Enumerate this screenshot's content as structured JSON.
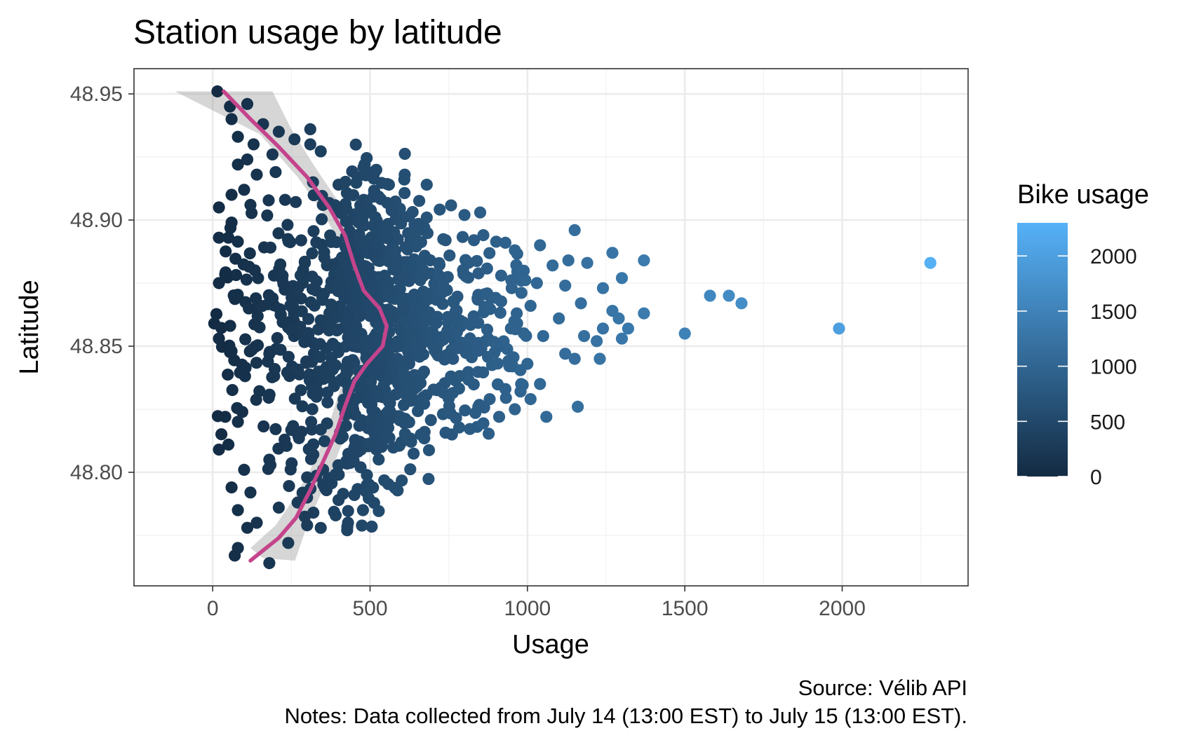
{
  "chart_data": {
    "type": "scatter",
    "title": "Station usage by latitude",
    "xlabel": "Usage",
    "ylabel": "Latitude",
    "xlim": [
      -250,
      2400
    ],
    "ylim": [
      48.755,
      48.96
    ],
    "x_ticks": [
      0,
      500,
      1000,
      1500,
      2000
    ],
    "x_tick_labels": [
      "0",
      "500",
      "1000",
      "1500",
      "2000"
    ],
    "y_ticks": [
      48.8,
      48.85,
      48.9,
      48.95
    ],
    "y_tick_labels": [
      "48.80",
      "48.85",
      "48.90",
      "48.95"
    ],
    "grid": true,
    "legend": {
      "title": "Bike usage",
      "placement": "right",
      "type": "colorbar",
      "range": [
        0,
        2300
      ],
      "ticks": [
        0,
        500,
        1000,
        1500,
        2000
      ],
      "tick_labels": [
        "0",
        "500",
        "1000",
        "1500",
        "2000"
      ],
      "low_color": "#132b43",
      "high_color": "#56b1f7"
    },
    "point_color_variable": "usage",
    "smooth_color": "#c4448c",
    "ribbon_color": "#999999",
    "points": [
      {
        "x": 15,
        "y": 48.951
      },
      {
        "x": 55,
        "y": 48.945
      },
      {
        "x": 110,
        "y": 48.946
      },
      {
        "x": 60,
        "y": 48.94
      },
      {
        "x": 160,
        "y": 48.938
      },
      {
        "x": 210,
        "y": 48.935
      },
      {
        "x": 310,
        "y": 48.936
      },
      {
        "x": 80,
        "y": 48.933
      },
      {
        "x": 130,
        "y": 48.93
      },
      {
        "x": 310,
        "y": 48.93
      },
      {
        "x": 260,
        "y": 48.932
      },
      {
        "x": 190,
        "y": 48.926
      },
      {
        "x": 110,
        "y": 48.924
      },
      {
        "x": 80,
        "y": 48.922
      },
      {
        "x": 140,
        "y": 48.918
      },
      {
        "x": 200,
        "y": 48.919
      },
      {
        "x": 460,
        "y": 48.917
      },
      {
        "x": 510,
        "y": 48.919
      },
      {
        "x": 610,
        "y": 48.918
      },
      {
        "x": 560,
        "y": 48.914
      },
      {
        "x": 680,
        "y": 48.914
      },
      {
        "x": 400,
        "y": 48.914
      },
      {
        "x": 100,
        "y": 48.912
      },
      {
        "x": 60,
        "y": 48.91
      },
      {
        "x": 20,
        "y": 48.905
      },
      {
        "x": 230,
        "y": 48.908
      },
      {
        "x": 350,
        "y": 48.906
      },
      {
        "x": 480,
        "y": 48.908
      },
      {
        "x": 120,
        "y": 48.906
      },
      {
        "x": 850,
        "y": 48.903
      },
      {
        "x": 800,
        "y": 48.902
      },
      {
        "x": 680,
        "y": 48.901
      },
      {
        "x": 590,
        "y": 48.9
      },
      {
        "x": 60,
        "y": 48.899
      },
      {
        "x": 20,
        "y": 48.893
      },
      {
        "x": 50,
        "y": 48.893
      },
      {
        "x": 1150,
        "y": 48.896
      },
      {
        "x": 860,
        "y": 48.894
      },
      {
        "x": 830,
        "y": 48.892
      },
      {
        "x": 740,
        "y": 48.892
      },
      {
        "x": 930,
        "y": 48.891
      },
      {
        "x": 1040,
        "y": 48.89
      },
      {
        "x": 960,
        "y": 48.888
      },
      {
        "x": 1270,
        "y": 48.887
      },
      {
        "x": 1130,
        "y": 48.884
      },
      {
        "x": 1370,
        "y": 48.884
      },
      {
        "x": 1080,
        "y": 48.882
      },
      {
        "x": 1190,
        "y": 48.883
      },
      {
        "x": 1300,
        "y": 48.877
      },
      {
        "x": 980,
        "y": 48.876
      },
      {
        "x": 1030,
        "y": 48.875
      },
      {
        "x": 1120,
        "y": 48.874
      },
      {
        "x": 1240,
        "y": 48.873
      },
      {
        "x": 950,
        "y": 48.873
      },
      {
        "x": 20,
        "y": 48.875
      },
      {
        "x": 1580,
        "y": 48.87
      },
      {
        "x": 1640,
        "y": 48.87
      },
      {
        "x": 1680,
        "y": 48.867
      },
      {
        "x": 2280,
        "y": 48.883
      },
      {
        "x": 1170,
        "y": 48.867
      },
      {
        "x": 1010,
        "y": 48.866
      },
      {
        "x": 1370,
        "y": 48.863
      },
      {
        "x": 1270,
        "y": 48.864
      },
      {
        "x": 1290,
        "y": 48.861
      },
      {
        "x": 1100,
        "y": 48.861
      },
      {
        "x": 1320,
        "y": 48.857
      },
      {
        "x": 1240,
        "y": 48.857
      },
      {
        "x": 1500,
        "y": 48.855
      },
      {
        "x": 1990,
        "y": 48.857
      },
      {
        "x": 1180,
        "y": 48.854
      },
      {
        "x": 1300,
        "y": 48.853
      },
      {
        "x": 1220,
        "y": 48.852
      },
      {
        "x": 1050,
        "y": 48.854
      },
      {
        "x": 1120,
        "y": 48.847
      },
      {
        "x": 1230,
        "y": 48.845
      },
      {
        "x": 1000,
        "y": 48.843
      },
      {
        "x": 1150,
        "y": 48.845
      },
      {
        "x": 5,
        "y": 48.859
      },
      {
        "x": 20,
        "y": 48.853
      },
      {
        "x": 60,
        "y": 48.848
      },
      {
        "x": 980,
        "y": 48.835
      },
      {
        "x": 1040,
        "y": 48.835
      },
      {
        "x": 930,
        "y": 48.833
      },
      {
        "x": 1010,
        "y": 48.829
      },
      {
        "x": 960,
        "y": 48.825
      },
      {
        "x": 1160,
        "y": 48.826
      },
      {
        "x": 1060,
        "y": 48.822
      },
      {
        "x": 880,
        "y": 48.829
      },
      {
        "x": 910,
        "y": 48.822
      },
      {
        "x": 840,
        "y": 48.818
      },
      {
        "x": 760,
        "y": 48.815
      },
      {
        "x": 40,
        "y": 48.822
      },
      {
        "x": 80,
        "y": 48.82
      },
      {
        "x": 20,
        "y": 48.809
      },
      {
        "x": 50,
        "y": 48.811
      },
      {
        "x": 600,
        "y": 48.812
      },
      {
        "x": 520,
        "y": 48.809
      },
      {
        "x": 470,
        "y": 48.802
      },
      {
        "x": 180,
        "y": 48.805
      },
      {
        "x": 100,
        "y": 48.801
      },
      {
        "x": 380,
        "y": 48.798
      },
      {
        "x": 300,
        "y": 48.798
      },
      {
        "x": 60,
        "y": 48.794
      },
      {
        "x": 120,
        "y": 48.792
      },
      {
        "x": 300,
        "y": 48.79
      },
      {
        "x": 400,
        "y": 48.789
      },
      {
        "x": 490,
        "y": 48.795
      },
      {
        "x": 450,
        "y": 48.791
      },
      {
        "x": 80,
        "y": 48.785
      },
      {
        "x": 210,
        "y": 48.786
      },
      {
        "x": 320,
        "y": 48.784
      },
      {
        "x": 430,
        "y": 48.78
      },
      {
        "x": 110,
        "y": 48.778
      },
      {
        "x": 300,
        "y": 48.779
      },
      {
        "x": 80,
        "y": 48.77
      },
      {
        "x": 70,
        "y": 48.767
      },
      {
        "x": 180,
        "y": 48.764
      },
      {
        "x": 240,
        "y": 48.772
      },
      {
        "x": 140,
        "y": 48.78
      },
      {
        "x": 270,
        "y": 48.788
      }
    ],
    "dense_cloud": {
      "n": 1000,
      "core": {
        "x_center": 420,
        "x_spread": 170,
        "y_center": 48.857,
        "y_spread": 0.03
      },
      "x_range": [
        10,
        1000
      ],
      "y_range": [
        48.77,
        48.93
      ]
    },
    "smooth_curve": [
      {
        "x": 35,
        "y": 48.951
      },
      {
        "x": 120,
        "y": 48.94
      },
      {
        "x": 210,
        "y": 48.929
      },
      {
        "x": 300,
        "y": 48.917
      },
      {
        "x": 370,
        "y": 48.905
      },
      {
        "x": 420,
        "y": 48.894
      },
      {
        "x": 450,
        "y": 48.882
      },
      {
        "x": 480,
        "y": 48.872
      },
      {
        "x": 530,
        "y": 48.865
      },
      {
        "x": 553,
        "y": 48.858
      },
      {
        "x": 540,
        "y": 48.85
      },
      {
        "x": 490,
        "y": 48.843
      },
      {
        "x": 450,
        "y": 48.836
      },
      {
        "x": 420,
        "y": 48.826
      },
      {
        "x": 390,
        "y": 48.815
      },
      {
        "x": 350,
        "y": 48.804
      },
      {
        "x": 310,
        "y": 48.793
      },
      {
        "x": 265,
        "y": 48.782
      },
      {
        "x": 210,
        "y": 48.774
      },
      {
        "x": 120,
        "y": 48.765
      }
    ],
    "ribbon_upper": [
      {
        "x": 190,
        "y": 48.951
      },
      {
        "x": 250,
        "y": 48.936
      },
      {
        "x": 320,
        "y": 48.922
      },
      {
        "x": 390,
        "y": 48.909
      },
      {
        "x": 440,
        "y": 48.897
      },
      {
        "x": 470,
        "y": 48.884
      },
      {
        "x": 495,
        "y": 48.873
      },
      {
        "x": 545,
        "y": 48.866
      },
      {
        "x": 575,
        "y": 48.858
      },
      {
        "x": 560,
        "y": 48.849
      },
      {
        "x": 515,
        "y": 48.842
      },
      {
        "x": 475,
        "y": 48.834
      },
      {
        "x": 445,
        "y": 48.823
      },
      {
        "x": 410,
        "y": 48.811
      },
      {
        "x": 375,
        "y": 48.8
      },
      {
        "x": 335,
        "y": 48.789
      },
      {
        "x": 300,
        "y": 48.779
      },
      {
        "x": 262,
        "y": 48.765
      }
    ],
    "ribbon_lower": [
      {
        "x": 260,
        "y": 48.765
      },
      {
        "x": 160,
        "y": 48.766
      },
      {
        "x": 120,
        "y": 48.77
      },
      {
        "x": 200,
        "y": 48.779
      },
      {
        "x": 260,
        "y": 48.79
      },
      {
        "x": 310,
        "y": 48.801
      },
      {
        "x": 350,
        "y": 48.812
      },
      {
        "x": 380,
        "y": 48.823
      },
      {
        "x": 405,
        "y": 48.833
      },
      {
        "x": 445,
        "y": 48.843
      },
      {
        "x": 500,
        "y": 48.85
      },
      {
        "x": 525,
        "y": 48.858
      },
      {
        "x": 505,
        "y": 48.864
      },
      {
        "x": 455,
        "y": 48.871
      },
      {
        "x": 425,
        "y": 48.881
      },
      {
        "x": 395,
        "y": 48.893
      },
      {
        "x": 345,
        "y": 48.904
      },
      {
        "x": 270,
        "y": 48.917
      },
      {
        "x": 150,
        "y": 48.934
      },
      {
        "x": -120,
        "y": 48.951
      }
    ]
  },
  "caption": {
    "source": "Source: Vélib API",
    "notes": "Notes: Data collected from July 14 (13:00 EST) to July 15 (13:00 EST)."
  },
  "colors": {
    "panel_border": "#333333",
    "grid_major": "#ebebeb",
    "grid_minor": "#f4f4f4",
    "tick_text": "#4d4d4d"
  }
}
